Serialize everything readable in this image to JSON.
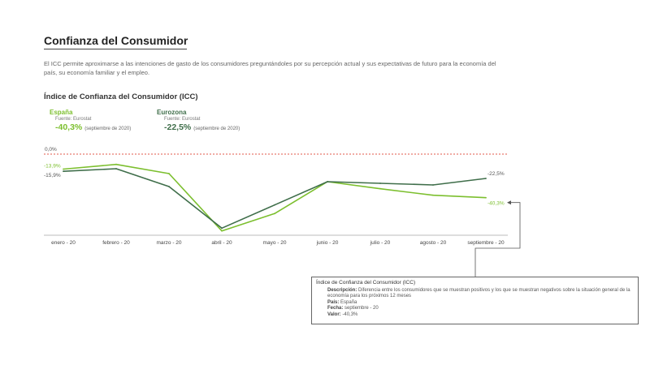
{
  "header": {
    "title": "Confianza del Consumidor",
    "intro": "El ICC permite aproximarse a las intenciones de gasto de los consumidores preguntándoles por su percepción actual y sus expectativas de futuro para la economía del país, su economía familiar y el empleo.",
    "subtitle": "Índice de Confianza del Consumidor (ICC)"
  },
  "kpis": {
    "spain": {
      "name": "España",
      "source": "Fuente: Eurostat",
      "value": "-40,3%",
      "date": "(septiembre de 2020)"
    },
    "eurozone": {
      "name": "Eurozona",
      "source": "Fuente: Eurostat",
      "value": "-22,5%",
      "date": "(septiembre de 2020)"
    }
  },
  "colors": {
    "spain": "#7cbf2e",
    "eurozone": "#3f6e4a",
    "zero_line": "#e0584a",
    "grid": "#bbbbbb"
  },
  "chart_data": {
    "type": "line",
    "categories": [
      "enero - 20",
      "febrero - 20",
      "marzo - 20",
      "abril - 20",
      "mayo - 20",
      "junio - 20",
      "julio - 20",
      "agosto - 20",
      "septiembre - 20"
    ],
    "series": [
      {
        "key": "spain",
        "name": "España",
        "values": [
          -13.9,
          -9.5,
          -18.0,
          -71.0,
          -55.0,
          -25.5,
          -32.0,
          -38.0,
          -40.3
        ]
      },
      {
        "key": "eurozone",
        "name": "Eurozona",
        "values": [
          -15.9,
          -13.5,
          -30.0,
          -68.5,
          -47.0,
          -25.5,
          -27.0,
          -28.5,
          -22.5
        ]
      }
    ],
    "labels": {
      "zero": "0,0%",
      "spain_first": "-13,9%",
      "eurozone_first": "-15,9%",
      "eurozone_last": "-22,5%",
      "spain_last": "-40,3%"
    },
    "ylim": [
      -75,
      0
    ],
    "grid": false,
    "legend": "none"
  },
  "tooltip": {
    "title": "Índice de Confianza del Consumidor (ICC)",
    "desc_label": "Descripción:",
    "desc_text": "Diferencia entre los consumidores que se muestran positivos y los que se muestran negativos sobre la situación general de la economía para los próximos 12 meses",
    "country_label": "País:",
    "country_value": "España",
    "date_label": "Fecha:",
    "date_value": "septiembre - 20",
    "value_label": "Valor:",
    "value_value": "-40,3%"
  }
}
